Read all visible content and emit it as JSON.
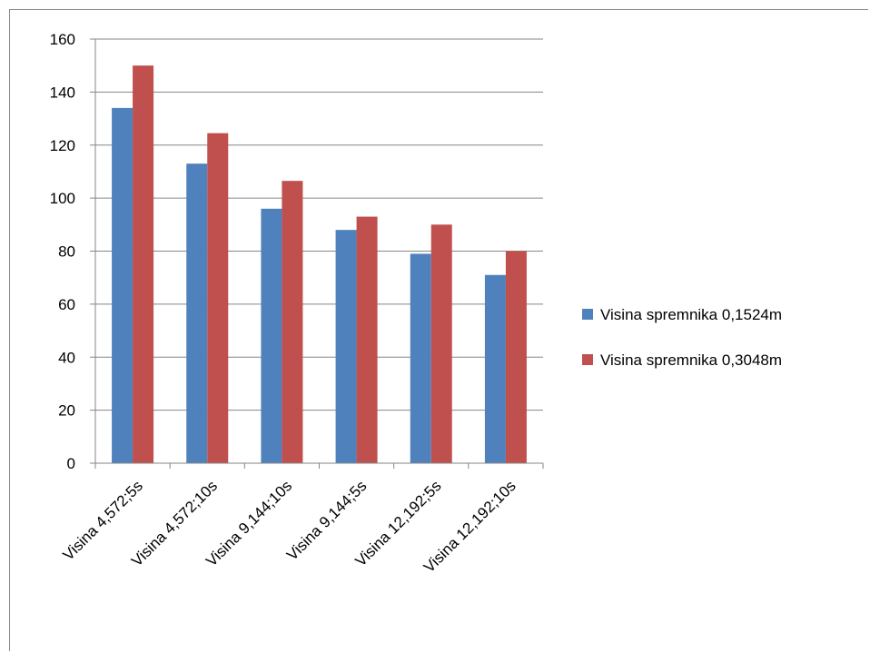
{
  "chart_data": {
    "type": "bar",
    "categories": [
      "Visina 4,572;5s",
      "Visina 4,572;10s",
      "Visina 9,144;10s",
      "Visina 9,144;5s",
      "Visina 12,192;5s",
      "Visina 12,192;10s"
    ],
    "series": [
      {
        "name": "Visina spremnika 0,1524m",
        "values": [
          134,
          113,
          96,
          88,
          79,
          71
        ],
        "color": "#4F81BD"
      },
      {
        "name": "Visina spremnika 0,3048m",
        "values": [
          150,
          124.5,
          106.5,
          93,
          90,
          80
        ],
        "color": "#C0504D"
      }
    ],
    "ylim": [
      0,
      160
    ],
    "yticks": [
      0,
      20,
      40,
      60,
      80,
      100,
      120,
      140,
      160
    ],
    "grid": true,
    "legend_position": "right",
    "title": "",
    "xlabel": "",
    "ylabel": ""
  }
}
